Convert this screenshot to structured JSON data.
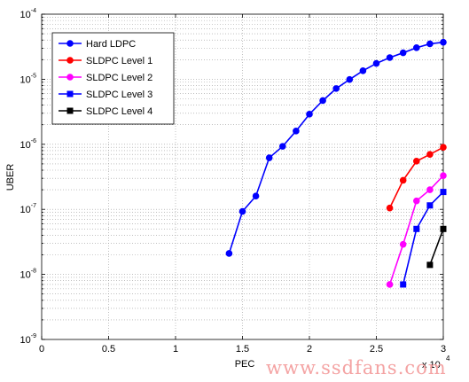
{
  "chart_data": {
    "type": "line",
    "xlabel": "PEC",
    "ylabel": "UBER",
    "x_multiplier_label": {
      "base": "x 10",
      "exponent": "4"
    },
    "xlim": [
      0,
      30000
    ],
    "ylim": [
      1e-09,
      0.0001
    ],
    "yscale": "log",
    "grid": true,
    "legend_location": "top-left",
    "x_ticks": [
      {
        "value": 0,
        "label": "0"
      },
      {
        "value": 5000,
        "label": "0.5"
      },
      {
        "value": 10000,
        "label": "1"
      },
      {
        "value": 15000,
        "label": "1.5"
      },
      {
        "value": 20000,
        "label": "2"
      },
      {
        "value": 25000,
        "label": "2.5"
      },
      {
        "value": 30000,
        "label": "3"
      }
    ],
    "y_ticks": [
      {
        "value": 1e-09,
        "base": "10",
        "exp": "-9"
      },
      {
        "value": 1e-08,
        "base": "10",
        "exp": "-8"
      },
      {
        "value": 1e-07,
        "base": "10",
        "exp": "-7"
      },
      {
        "value": 1e-06,
        "base": "10",
        "exp": "-6"
      },
      {
        "value": 1e-05,
        "base": "10",
        "exp": "-5"
      },
      {
        "value": 0.0001,
        "base": "10",
        "exp": "-4"
      }
    ],
    "series": [
      {
        "name": "Hard LDPC",
        "color": "#0000ff",
        "marker": "circle",
        "x": [
          14000,
          15000,
          16000,
          17000,
          18000,
          19000,
          20000,
          21000,
          22000,
          23000,
          24000,
          25000,
          26000,
          27000,
          28000,
          29000,
          30000
        ],
        "y": [
          2.1e-08,
          9.3e-08,
          1.6e-07,
          6.2e-07,
          9.3e-07,
          1.6e-06,
          2.9e-06,
          4.7e-06,
          7.2e-06,
          9.9e-06,
          1.35e-05,
          1.75e-05,
          2.15e-05,
          2.55e-05,
          3.05e-05,
          3.5e-05,
          3.7e-05
        ]
      },
      {
        "name": "SLDPC Level 1",
        "color": "#ff0000",
        "marker": "circle",
        "x": [
          26000,
          27000,
          28000,
          29000,
          30000
        ],
        "y": [
          1.05e-07,
          2.8e-07,
          5.5e-07,
          7e-07,
          9e-07
        ]
      },
      {
        "name": "SLDPC Level 2",
        "color": "#ff00ff",
        "marker": "circle",
        "x": [
          26000,
          27000,
          28000,
          29000,
          30000
        ],
        "y": [
          7e-09,
          2.9e-08,
          1.35e-07,
          2e-07,
          3.3e-07
        ]
      },
      {
        "name": "SLDPC Level 3",
        "color": "#0000ff",
        "marker": "square",
        "x": [
          27000,
          28000,
          29000,
          30000
        ],
        "y": [
          7e-09,
          5e-08,
          1.15e-07,
          1.85e-07
        ]
      },
      {
        "name": "SLDPC Level 4",
        "color": "#000000",
        "marker": "square",
        "x": [
          29000,
          30000
        ],
        "y": [
          1.4e-08,
          5e-08
        ]
      }
    ]
  },
  "watermark": "www.ssdfans.com"
}
